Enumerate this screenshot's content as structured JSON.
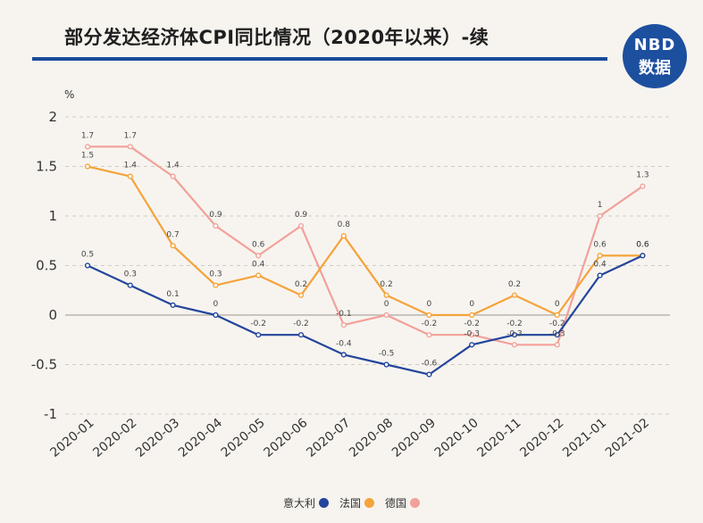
{
  "header": {
    "title": "部分发达经济体CPI同比情况（2020年以来）-续",
    "logo_top": "NBD",
    "logo_bottom": "数据"
  },
  "colors": {
    "title_rule": "#1a4a9a",
    "logo_bg": "#1d4f9f",
    "background": "#f7f4ef"
  },
  "chart_data": {
    "type": "line",
    "ylabel": "%",
    "xlabel": "",
    "ylim": [
      -1,
      2
    ],
    "yticks": [
      2,
      1.5,
      1,
      0.5,
      0,
      -0.5,
      -1
    ],
    "grid": true,
    "legend_position": "bottom-center",
    "categories": [
      "2020-01",
      "2020-02",
      "2020-03",
      "2020-04",
      "2020-05",
      "2020-06",
      "2020-07",
      "2020-08",
      "2020-09",
      "2020-10",
      "2020-11",
      "2020-12",
      "2021-01",
      "2021-02"
    ],
    "series": [
      {
        "name": "意大利",
        "color": "#23459c",
        "values": [
          0.5,
          0.3,
          0.1,
          0,
          -0.2,
          -0.2,
          -0.4,
          -0.5,
          -0.6,
          -0.3,
          -0.2,
          -0.2,
          0.4,
          0.6
        ]
      },
      {
        "name": "法国",
        "color": "#f5a33b",
        "values": [
          1.5,
          1.4,
          0.7,
          0.3,
          0.4,
          0.2,
          0.8,
          0.2,
          0,
          0,
          0.2,
          0,
          0.6,
          0.6
        ]
      },
      {
        "name": "德国",
        "color": "#f2a19a",
        "values": [
          1.7,
          1.7,
          1.4,
          0.9,
          0.6,
          0.9,
          -0.1,
          0,
          -0.2,
          -0.2,
          -0.3,
          -0.3,
          1,
          1.3
        ]
      }
    ]
  }
}
